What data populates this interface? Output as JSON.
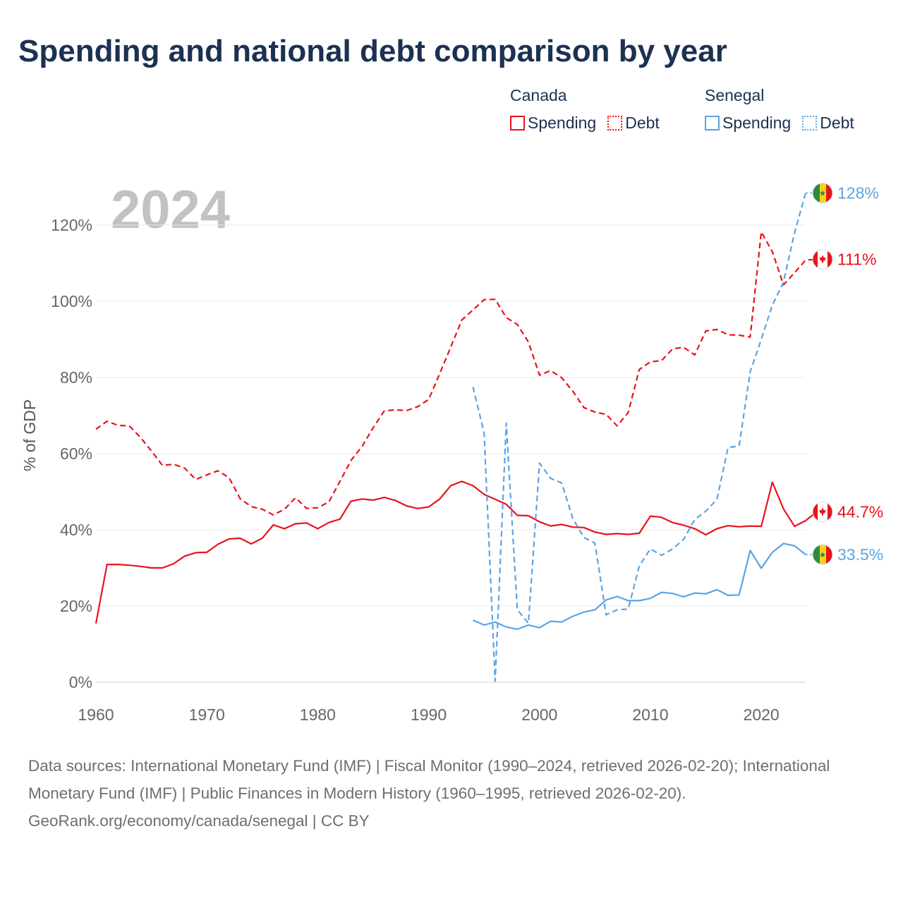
{
  "title": "Spending and national debt comparison by year",
  "year_watermark": "2024",
  "legend": {
    "groups": [
      {
        "country": "Canada",
        "color": "#e8131b",
        "spending_label": "Spending",
        "debt_label": "Debt"
      },
      {
        "country": "Senegal",
        "color": "#5aa4e6",
        "spending_label": "Spending",
        "debt_label": "Debt"
      }
    ]
  },
  "chart_data": {
    "type": "line",
    "title": "Spending and national debt comparison by year",
    "xlabel": "",
    "ylabel": "% of GDP",
    "xlim": [
      1960,
      2024
    ],
    "ylim": [
      0,
      130
    ],
    "x_ticks": [
      1960,
      1970,
      1980,
      1990,
      2000,
      2010,
      2020
    ],
    "y_ticks": [
      0,
      20,
      40,
      60,
      80,
      100,
      120
    ],
    "y_tick_labels": [
      "0%",
      "20%",
      "40%",
      "60%",
      "80%",
      "100%",
      "120%"
    ],
    "grid": true,
    "series": [
      {
        "name": "Canada Spending",
        "country": "Canada",
        "style": "solid",
        "color": "#e8131b",
        "x_start": 1960,
        "values": [
          15.4,
          30.9,
          30.9,
          30.7,
          30.4,
          30.0,
          30.0,
          31.1,
          33.1,
          34.0,
          34.1,
          36.2,
          37.6,
          37.8,
          36.3,
          37.8,
          41.3,
          40.3,
          41.6,
          41.8,
          40.3,
          41.9,
          42.8,
          47.5,
          48.1,
          47.8,
          48.5,
          47.7,
          46.3,
          45.6,
          46.0,
          48.1,
          51.6,
          52.7,
          51.6,
          49.3,
          48.0,
          46.7,
          43.8,
          43.7,
          42.1,
          41.0,
          41.4,
          40.7,
          40.6,
          39.4,
          38.8,
          39.0,
          38.8,
          39.1,
          43.6,
          43.3,
          41.9,
          41.2,
          40.3,
          38.7,
          40.3,
          41.1,
          40.8,
          41.0,
          40.9,
          52.5,
          45.5,
          40.9,
          42.4,
          44.7
        ]
      },
      {
        "name": "Canada Debt",
        "country": "Canada",
        "style": "dashed",
        "color": "#e8131b",
        "x_start": 1960,
        "values": [
          66.4,
          68.5,
          67.4,
          67.3,
          64.3,
          60.7,
          56.9,
          57.2,
          56.2,
          53.2,
          54.4,
          55.5,
          53.7,
          48.2,
          46.1,
          45.4,
          43.9,
          45.4,
          48.4,
          45.6,
          45.8,
          47.3,
          52.7,
          58.2,
          61.9,
          66.8,
          71.2,
          71.5,
          71.3,
          72.3,
          74.2,
          81.0,
          88.0,
          95.1,
          97.7,
          100.4,
          100.5,
          95.7,
          93.9,
          89.3,
          80.6,
          81.8,
          79.9,
          76.4,
          72.1,
          70.9,
          70.3,
          67.3,
          70.8,
          82.1,
          84.1,
          84.4,
          87.5,
          87.9,
          85.9,
          92.2,
          92.6,
          91.2,
          91.1,
          90.6,
          118.2,
          113.0,
          104.3,
          107.5,
          110.8,
          111.0
        ]
      },
      {
        "name": "Senegal Spending",
        "country": "Senegal",
        "style": "solid",
        "color": "#5aa4e6",
        "x_start": 1994,
        "values": [
          16.3,
          15.0,
          15.8,
          14.5,
          13.9,
          15.0,
          14.3,
          16.0,
          15.8,
          17.3,
          18.4,
          19.0,
          21.6,
          22.5,
          21.4,
          21.4,
          22.0,
          23.6,
          23.3,
          22.4,
          23.4,
          23.2,
          24.3,
          22.8,
          22.9,
          34.6,
          29.9,
          34.1,
          36.4,
          35.8,
          33.5
        ]
      },
      {
        "name": "Senegal Debt",
        "country": "Senegal",
        "style": "dashed",
        "color": "#5aa4e6",
        "x_start": 1994,
        "values": [
          77.5,
          65.5,
          0.3,
          68.0,
          19.0,
          15.5,
          57.5,
          53.5,
          52.3,
          43.0,
          38.0,
          36.5,
          17.7,
          19.0,
          19.2,
          30.5,
          35.0,
          33.3,
          35.0,
          37.5,
          42.7,
          44.9,
          48.0,
          61.6,
          62.0,
          81.5,
          90.0,
          99.0,
          105.0,
          118.0,
          128.4
        ]
      }
    ],
    "end_labels": [
      {
        "series": "Senegal Debt",
        "label": "128%",
        "flag": "senegal-flag"
      },
      {
        "series": "Canada Debt",
        "label": "111%",
        "flag": "canada-flag"
      },
      {
        "series": "Canada Spending",
        "label": "44.7%",
        "flag": "canada-flag"
      },
      {
        "series": "Senegal Spending",
        "label": "33.5%",
        "flag": "senegal-flag"
      }
    ]
  },
  "footer": {
    "sources": "Data sources: International Monetary Fund (IMF) | Fiscal Monitor (1990–2024, retrieved 2026-02-20); International Monetary Fund (IMF) | Public Finances in Modern History (1960–1995, retrieved 2026-02-20).",
    "credit": "GeoRank.org/economy/canada/senegal | CC BY"
  }
}
